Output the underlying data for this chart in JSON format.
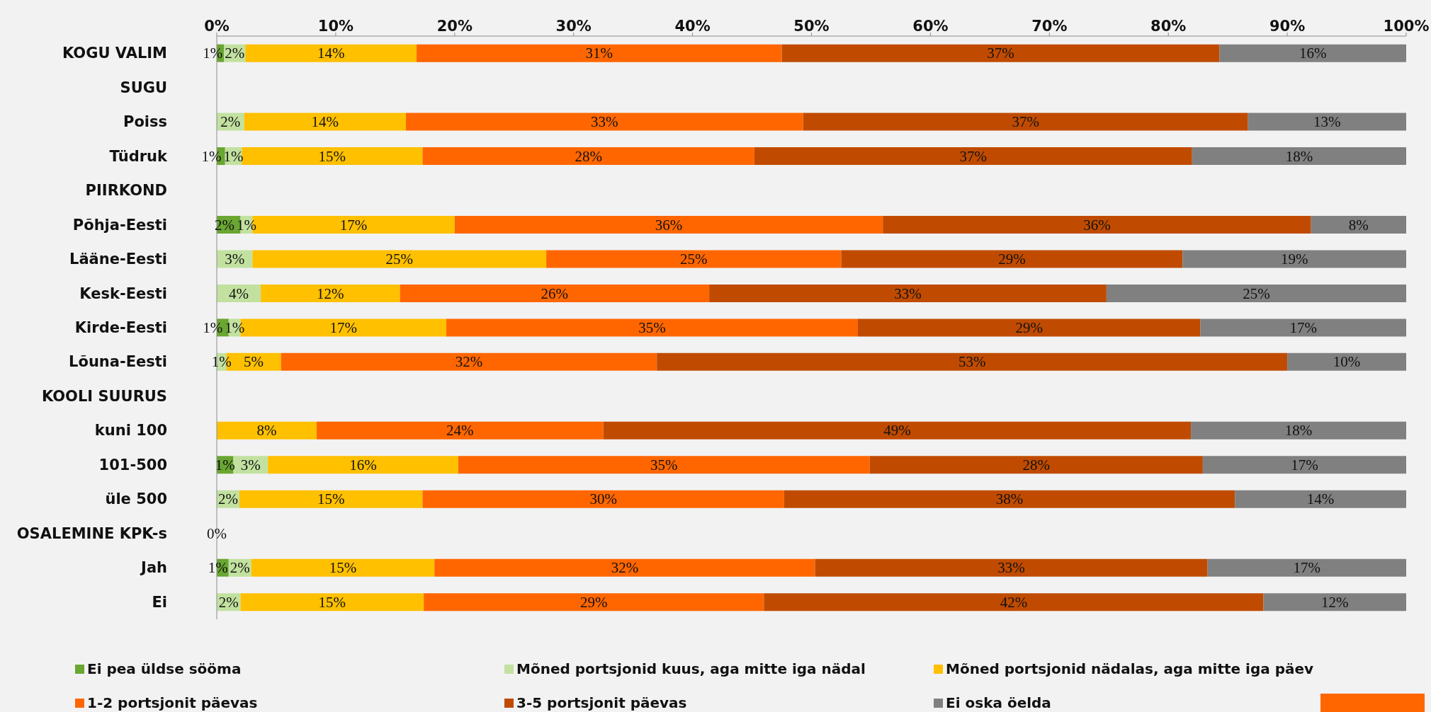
{
  "chart_data": {
    "type": "bar",
    "orientation": "horizontal",
    "stacked": true,
    "categories": [
      "KOGU VALIM",
      "SUGU",
      "Poiss",
      "Tüdruk",
      "PIIRKOND",
      "Põhja-Eesti",
      "Lääne-Eesti",
      "Kesk-Eesti",
      "Kirde-Eesti",
      "Lõuna-Eesti",
      "KOOLI SUURUS",
      "kuni 100",
      "101-500",
      "üle 500",
      "OSALEMINE KPK-s",
      "Jah",
      "Ei"
    ],
    "xlim": [
      0,
      100
    ],
    "xticks": [
      {
        "value": 0,
        "label": "0%"
      },
      {
        "value": 10,
        "label": "10%"
      },
      {
        "value": 20,
        "label": "20%"
      },
      {
        "value": 30,
        "label": "30%"
      },
      {
        "value": 40,
        "label": "40%"
      },
      {
        "value": 50,
        "label": "50%"
      },
      {
        "value": 60,
        "label": "60%"
      },
      {
        "value": 70,
        "label": "70%"
      },
      {
        "value": 80,
        "label": "80%"
      },
      {
        "value": 90,
        "label": "90%"
      },
      {
        "value": 100,
        "label": "100%"
      }
    ],
    "legend": "bottom",
    "series": [
      {
        "name": "Ei pea üldse sööma",
        "color": "#6aa632",
        "values": [
          0.6,
          null,
          null,
          0.7,
          null,
          2.0,
          null,
          null,
          1.0,
          null,
          null,
          null,
          1.4,
          null,
          0,
          1.0,
          null
        ],
        "value_labels": [
          "1%",
          null,
          null,
          "1%",
          null,
          "2%",
          null,
          null,
          "1%",
          null,
          null,
          null,
          "1%",
          null,
          "0%",
          "1%",
          null
        ]
      },
      {
        "name": "Mõned portsjonid kuus, aga mitte iga nädal",
        "color": "#c2e1a0",
        "values": [
          1.8,
          null,
          2.3,
          1.4,
          null,
          1.0,
          3.0,
          3.7,
          1.0,
          0.8,
          null,
          null,
          2.9,
          1.9,
          null,
          1.9,
          2.0
        ],
        "value_labels": [
          "2%",
          null,
          "2%",
          "1%",
          null,
          "1%",
          "3%",
          "4%",
          "1%",
          "1%",
          null,
          null,
          "3%",
          "2%",
          null,
          "2%",
          "2%"
        ]
      },
      {
        "name": "Mõned portsjonid nädalas, aga mitte iga päev",
        "color": "#ffc000",
        "values": [
          14.4,
          null,
          13.6,
          15.2,
          null,
          17.0,
          24.7,
          11.7,
          17.3,
          4.6,
          null,
          8.4,
          16.0,
          15.4,
          null,
          15.4,
          15.4
        ],
        "value_labels": [
          "14%",
          null,
          "14%",
          "15%",
          null,
          "17%",
          "25%",
          "12%",
          "17%",
          "5%",
          null,
          "8%",
          "16%",
          "15%",
          null,
          "15%",
          "15%"
        ]
      },
      {
        "name": "1-2 portsjonit päevas",
        "color": "#ff6600",
        "values": [
          30.7,
          null,
          33.4,
          27.9,
          null,
          36.0,
          24.8,
          26.0,
          34.6,
          31.6,
          null,
          24.1,
          34.6,
          30.4,
          null,
          32.0,
          28.6
        ],
        "value_labels": [
          "31%",
          null,
          "33%",
          "28%",
          null,
          "36%",
          "25%",
          "26%",
          "35%",
          "32%",
          null,
          "24%",
          "35%",
          "30%",
          null,
          "32%",
          "29%"
        ]
      },
      {
        "name": "3-5 portsjonit päevas",
        "color": "#c04b00",
        "values": [
          36.8,
          null,
          37.4,
          36.8,
          null,
          36.0,
          28.7,
          33.4,
          28.8,
          53.0,
          null,
          49.4,
          28.0,
          37.9,
          null,
          33.0,
          42.0
        ],
        "value_labels": [
          "37%",
          null,
          "37%",
          "37%",
          null,
          "36%",
          "29%",
          "33%",
          "29%",
          "53%",
          null,
          "49%",
          "28%",
          "38%",
          null,
          "33%",
          "42%"
        ]
      },
      {
        "name": "Ei oska öelda",
        "color": "#808080",
        "values": [
          15.7,
          null,
          13.3,
          18.0,
          null,
          8.0,
          18.8,
          25.2,
          17.3,
          10.0,
          null,
          18.1,
          17.1,
          14.4,
          null,
          16.7,
          12.0
        ],
        "value_labels": [
          "16%",
          null,
          "13%",
          "18%",
          null,
          "8%",
          "19%",
          "25%",
          "17%",
          "10%",
          null,
          "18%",
          "17%",
          "14%",
          null,
          "17%",
          "12%"
        ]
      }
    ]
  }
}
